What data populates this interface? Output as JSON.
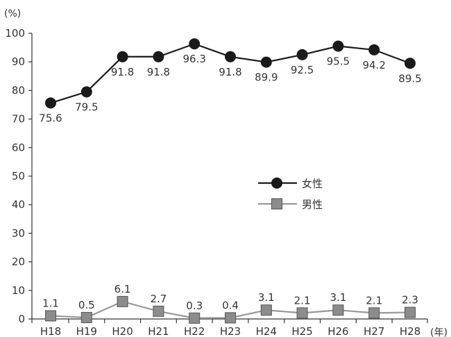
{
  "chart_data": {
    "type": "line",
    "y_unit": "(%)",
    "x_unit": "(年)",
    "categories": [
      "H18",
      "H19",
      "H20",
      "H21",
      "H22",
      "H23",
      "H24",
      "H25",
      "H26",
      "H27",
      "H28"
    ],
    "y_ticks": [
      0,
      10,
      20,
      30,
      40,
      50,
      60,
      70,
      80,
      90,
      100
    ],
    "ylim": [
      0,
      100
    ],
    "series": [
      {
        "name": "女性",
        "values": [
          75.6,
          79.5,
          91.8,
          91.8,
          96.3,
          91.8,
          89.9,
          92.5,
          95.5,
          94.2,
          89.5
        ],
        "color": "#1a1a1a",
        "marker": "circle"
      },
      {
        "name": "男性",
        "values": [
          1.1,
          0.5,
          6.1,
          2.7,
          0.3,
          0.4,
          3.1,
          2.1,
          3.1,
          2.1,
          2.3
        ],
        "color": "#999999",
        "marker": "square"
      }
    ],
    "legend_position": "right-middle",
    "grid": false
  }
}
